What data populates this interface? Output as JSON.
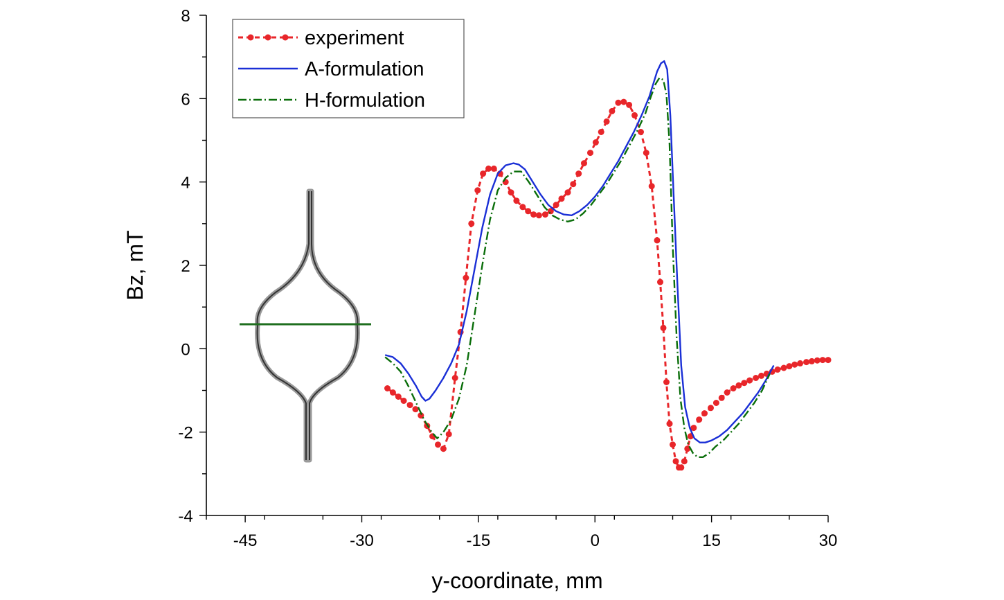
{
  "chart_data": {
    "type": "line",
    "title": "",
    "xlabel": "y-coordinate, mm",
    "ylabel": "Bz, mT",
    "xlim": [
      -50,
      30
    ],
    "ylim": [
      -4,
      8
    ],
    "xticks": [
      -45,
      -30,
      -15,
      0,
      15,
      30
    ],
    "yticks": [
      -4,
      -2,
      0,
      2,
      4,
      6,
      8
    ],
    "xtick_labels": [
      "-45",
      "-30",
      "-15",
      "0",
      "15",
      "30"
    ],
    "ytick_labels": [
      "-4",
      "-2",
      "0",
      "2",
      "4",
      "6",
      "8"
    ],
    "legend": [
      "experiment",
      "A-formulation",
      "H-formulation"
    ],
    "legend_position": "top-left",
    "series": [
      {
        "name": "experiment",
        "color": "#e8262a",
        "style": "dashed-dots",
        "x": [
          -26.7,
          -26,
          -25.3,
          -24.6,
          -23.8,
          -23.1,
          -22.4,
          -21.6,
          -20.9,
          -20.2,
          -19.5,
          -18.8,
          -18.0,
          -17.3,
          -16.6,
          -15.9,
          -15.1,
          -14.4,
          -13.7,
          -13.0,
          -12.2,
          -11.5,
          -10.8,
          -10.1,
          -9.3,
          -8.6,
          -7.9,
          -7.2,
          -6.4,
          -5.7,
          -5.0,
          -4.3,
          -3.5,
          -2.8,
          -2.1,
          -1.4,
          -0.6,
          0.1,
          0.8,
          1.5,
          2.2,
          3.0,
          3.7,
          4.4,
          5.1,
          5.9,
          6.6,
          7.3,
          8.0,
          8.4,
          8.8,
          9.2,
          9.6,
          10.0,
          10.4,
          10.8,
          11.1,
          11.5,
          11.9,
          12.3,
          12.7,
          13.4,
          14.1,
          14.9,
          15.6,
          16.3,
          17.0,
          17.8,
          18.5,
          19.2,
          19.9,
          20.7,
          21.4,
          22.1,
          22.8,
          23.5,
          24.3,
          25.0,
          25.7,
          26.4,
          27.2,
          27.9,
          28.6,
          29.3,
          30.0
        ],
        "values": [
          -0.95,
          -1.05,
          -1.15,
          -1.25,
          -1.35,
          -1.45,
          -1.6,
          -1.85,
          -2.1,
          -2.3,
          -2.4,
          -2.05,
          -0.7,
          0.4,
          1.7,
          3.0,
          3.8,
          4.2,
          4.32,
          4.32,
          4.2,
          4.0,
          3.75,
          3.55,
          3.4,
          3.3,
          3.22,
          3.2,
          3.22,
          3.3,
          3.45,
          3.6,
          3.75,
          3.95,
          4.2,
          4.45,
          4.7,
          4.95,
          5.2,
          5.45,
          5.7,
          5.9,
          5.92,
          5.85,
          5.6,
          5.2,
          4.7,
          3.9,
          2.6,
          1.6,
          0.5,
          -0.8,
          -1.8,
          -2.3,
          -2.7,
          -2.85,
          -2.85,
          -2.7,
          -2.4,
          -2.1,
          -1.9,
          -1.7,
          -1.55,
          -1.42,
          -1.3,
          -1.18,
          -1.05,
          -0.95,
          -0.88,
          -0.82,
          -0.76,
          -0.7,
          -0.65,
          -0.6,
          -0.55,
          -0.5,
          -0.46,
          -0.42,
          -0.38,
          -0.35,
          -0.32,
          -0.3,
          -0.28,
          -0.27,
          -0.27
        ]
      },
      {
        "name": "A-formulation",
        "color": "#1a2fd6",
        "style": "solid",
        "x": [
          -27,
          -26,
          -25,
          -24,
          -23,
          -22.3,
          -21.8,
          -21.3,
          -20.5,
          -19.5,
          -18.5,
          -17.5,
          -16.5,
          -15.5,
          -14.5,
          -13.5,
          -12.5,
          -11.5,
          -10.5,
          -9.8,
          -9,
          -8,
          -7,
          -6,
          -5,
          -4,
          -3,
          -2,
          -1,
          0,
          1,
          2,
          3,
          4,
          5,
          6,
          7,
          7.5,
          8,
          8.5,
          8.9,
          9.3,
          9.7,
          10.1,
          10.6,
          11.1,
          11.6,
          12.2,
          12.8,
          13.5,
          14.2,
          15,
          16,
          17,
          18,
          19,
          20,
          21,
          22,
          23
        ],
        "values": [
          -0.15,
          -0.2,
          -0.35,
          -0.6,
          -0.9,
          -1.15,
          -1.25,
          -1.2,
          -1.0,
          -0.7,
          -0.35,
          0.1,
          0.9,
          1.9,
          2.9,
          3.7,
          4.2,
          4.4,
          4.45,
          4.42,
          4.3,
          4.0,
          3.7,
          3.45,
          3.3,
          3.22,
          3.2,
          3.3,
          3.45,
          3.65,
          3.9,
          4.2,
          4.5,
          4.85,
          5.2,
          5.6,
          6.05,
          6.35,
          6.65,
          6.85,
          6.9,
          6.7,
          5.6,
          3.8,
          1.6,
          -0.4,
          -1.4,
          -1.9,
          -2.15,
          -2.25,
          -2.25,
          -2.2,
          -2.1,
          -1.95,
          -1.75,
          -1.55,
          -1.3,
          -1.05,
          -0.75,
          -0.4
        ]
      },
      {
        "name": "H-formulation",
        "color": "#0a6e0a",
        "style": "dash-dot",
        "x": [
          -27,
          -26,
          -25,
          -24,
          -23,
          -22,
          -21,
          -20.3,
          -19.5,
          -18.5,
          -17.5,
          -16.5,
          -15.5,
          -14.5,
          -13.5,
          -12.5,
          -11.5,
          -10.5,
          -9.5,
          -8.5,
          -7.5,
          -6.5,
          -5.5,
          -4.5,
          -3.5,
          -2.5,
          -1.5,
          -0.5,
          0.5,
          1.5,
          2.5,
          3.5,
          4.5,
          5.5,
          6.5,
          7.2,
          7.8,
          8.3,
          8.8,
          9.2,
          9.6,
          10,
          10.5,
          11,
          11.5,
          12,
          12.6,
          13.2,
          13.9,
          14.7,
          15.5,
          16.5,
          17.5,
          18.5,
          19.5,
          20.5,
          21.5,
          22.5
        ],
        "values": [
          -0.2,
          -0.35,
          -0.55,
          -0.9,
          -1.3,
          -1.7,
          -2.0,
          -2.15,
          -2.0,
          -1.7,
          -1.2,
          -0.4,
          0.8,
          2.0,
          3.1,
          3.8,
          4.1,
          4.25,
          4.25,
          4.0,
          3.7,
          3.4,
          3.2,
          3.1,
          3.05,
          3.1,
          3.25,
          3.45,
          3.7,
          3.95,
          4.25,
          4.55,
          4.9,
          5.25,
          5.65,
          6.05,
          6.35,
          6.5,
          6.45,
          6.1,
          4.9,
          2.5,
          0.3,
          -1.2,
          -1.9,
          -2.3,
          -2.5,
          -2.6,
          -2.6,
          -2.5,
          -2.35,
          -2.2,
          -2.0,
          -1.8,
          -1.55,
          -1.3,
          -1.0,
          -0.6
        ]
      }
    ]
  }
}
